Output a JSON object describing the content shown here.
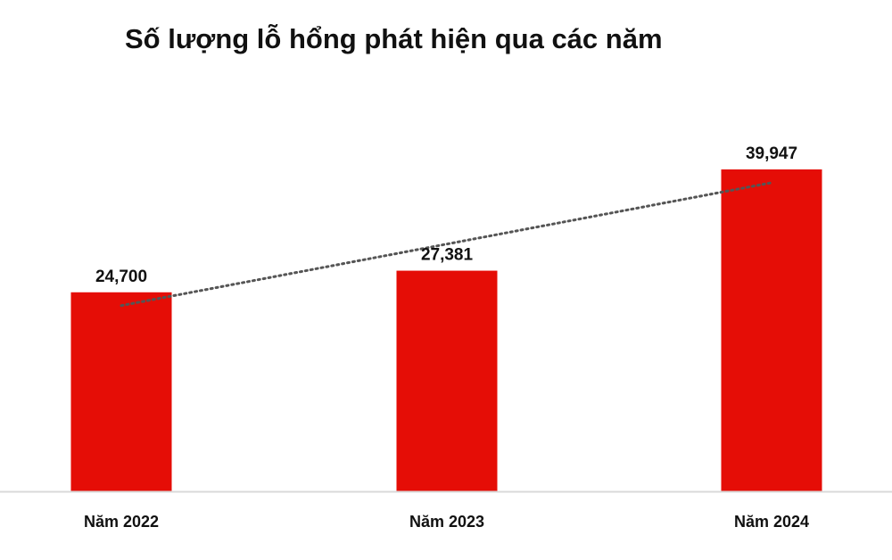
{
  "colors": {
    "bar": "#e50d06",
    "trendline": "#555555",
    "axis": "#d9d9d9",
    "text": "#111111"
  },
  "chart_data": {
    "type": "bar",
    "title": "Số lượng lỗ hổng phát hiện qua các năm",
    "categories": [
      "Năm 2022",
      "Năm 2023",
      "Năm 2024"
    ],
    "values": [
      24700,
      27381,
      39947
    ],
    "value_labels": [
      "24,700",
      "27,381",
      "39,947"
    ],
    "trendline": "linear, dotted",
    "grid": false,
    "legend": "none"
  }
}
